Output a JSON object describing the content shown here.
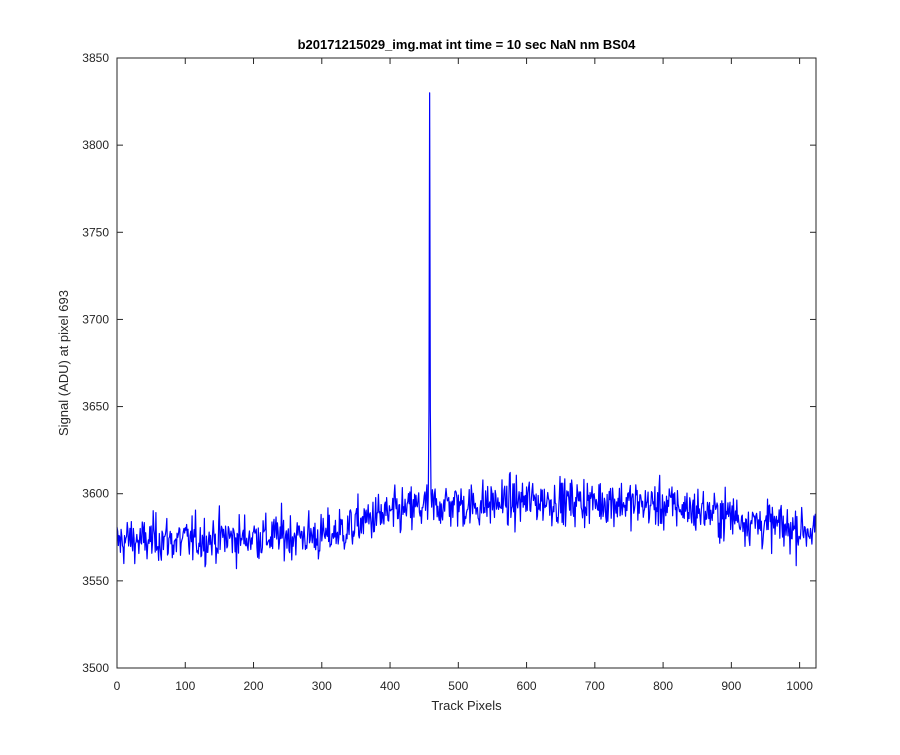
{
  "chart_data": {
    "type": "line",
    "title": "b20171215029_img.mat int time = 10 sec  NaN nm BS04",
    "xlabel": "Track Pixels",
    "ylabel": "Signal (ADU) at pixel 693",
    "xlim": [
      0,
      1024
    ],
    "ylim": [
      3500,
      3850
    ],
    "xticks": [
      0,
      100,
      200,
      300,
      400,
      500,
      600,
      700,
      800,
      900,
      1000
    ],
    "yticks": [
      3500,
      3550,
      3600,
      3650,
      3700,
      3750,
      3800,
      3850
    ],
    "grid": false,
    "legend": "none",
    "line_color": "#0000ff",
    "axis_color": "#262626",
    "series": [
      {
        "x": [
          0,
          20,
          40,
          60,
          80,
          100,
          120,
          140,
          160,
          180,
          200,
          220,
          240,
          260,
          280,
          300,
          320,
          340,
          360,
          380,
          400,
          420,
          440,
          455,
          458,
          460,
          462,
          465,
          480,
          500,
          520,
          540,
          560,
          580,
          600,
          620,
          640,
          660,
          680,
          700,
          720,
          740,
          760,
          780,
          800,
          820,
          840,
          860,
          880,
          900,
          920,
          940,
          960,
          980,
          1000,
          1023
        ],
        "y": [
          3572,
          3574,
          3572,
          3575,
          3573,
          3573,
          3574,
          3574,
          3575,
          3574,
          3576,
          3575,
          3576,
          3576,
          3576,
          3575,
          3578,
          3580,
          3584,
          3587,
          3588,
          3590,
          3592,
          3592,
          3830,
          3592,
          3594,
          3593,
          3594,
          3594,
          3593,
          3594,
          3595,
          3595,
          3596,
          3596,
          3596,
          3595,
          3596,
          3595,
          3596,
          3595,
          3594,
          3594,
          3593,
          3593,
          3591,
          3590,
          3588,
          3588,
          3585,
          3583,
          3582,
          3580,
          3580,
          3579
        ]
      }
    ],
    "notes_visible": [
      "Narrow peak near x ≈ 458 reaching ≈ 3830",
      "Noise amplitude roughly ±15 ADU around the baseline"
    ]
  }
}
